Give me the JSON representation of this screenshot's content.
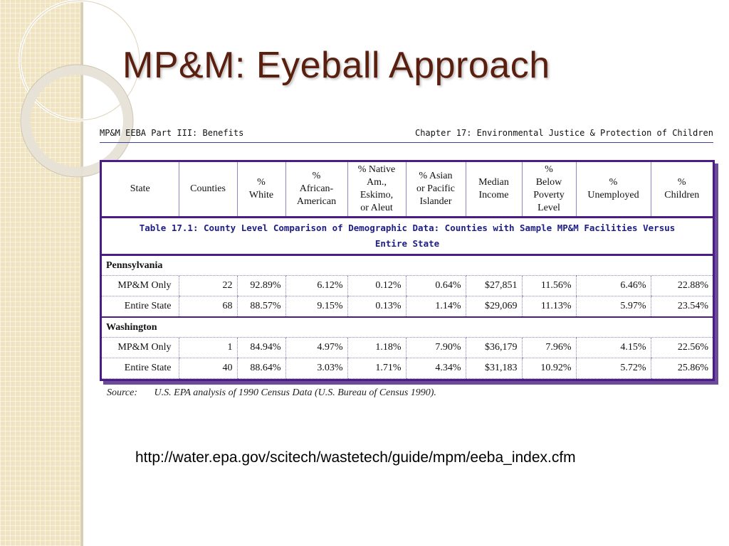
{
  "slide": {
    "title": "MP&M:  Eyeball Approach",
    "url": "http://water.epa.gov/scitech/wastetech/guide/mpm/eeba_index.cfm"
  },
  "doc_header": {
    "left": "MP&M EEBA Part III: Benefits",
    "right": "Chapter 17: Environmental Justice & Protection of Children"
  },
  "table": {
    "caption_line1": "Table 17.1: County Level Comparison of Demographic Data: Counties with Sample MP&M Facilities Versus",
    "caption_line2": "Entire State",
    "headers": [
      [
        "State"
      ],
      [
        "Counties"
      ],
      [
        "%",
        "White"
      ],
      [
        "%",
        "African-",
        "American"
      ],
      [
        "% Native",
        "Am.,",
        "Eskimo,",
        "or Aleut"
      ],
      [
        "% Asian",
        "or Pacific",
        "Islander"
      ],
      [
        "Median",
        "Income"
      ],
      [
        "%",
        "Below",
        "Poverty",
        "Level"
      ],
      [
        "%",
        "Unemployed"
      ],
      [
        "%",
        "Children"
      ]
    ],
    "sections": [
      {
        "name": "Pennsylvania",
        "rows": [
          [
            "MP&M Only",
            "22",
            "92.89%",
            "6.12%",
            "0.12%",
            "0.64%",
            "$27,851",
            "11.56%",
            "6.46%",
            "22.88%"
          ],
          [
            "Entire State",
            "68",
            "88.57%",
            "9.15%",
            "0.13%",
            "1.14%",
            "$29,069",
            "11.13%",
            "5.97%",
            "23.54%"
          ]
        ]
      },
      {
        "name": "Washington",
        "rows": [
          [
            "MP&M Only",
            "1",
            "84.94%",
            "4.97%",
            "1.18%",
            "7.90%",
            "$36,179",
            "7.96%",
            "4.15%",
            "22.56%"
          ],
          [
            "Entire State",
            "40",
            "88.64%",
            "3.03%",
            "1.71%",
            "4.34%",
            "$31,183",
            "10.92%",
            "5.72%",
            "25.86%"
          ]
        ]
      }
    ],
    "source_label": "Source:",
    "source_text": "U.S. EPA analysis of 1990 Census Data (U.S. Bureau of Census 1990)."
  }
}
